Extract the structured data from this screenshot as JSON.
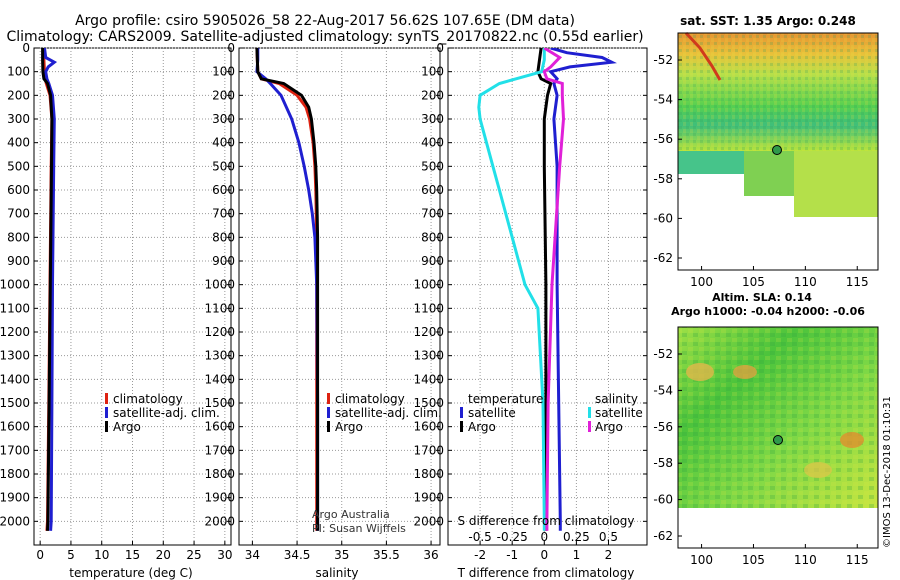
{
  "header": {
    "title_line1": "Argo profile: csiro 5905026_58 22-Aug-2017 56.62S 107.65E (DM data)",
    "title_line2": "Climatology: CARS2009. Satellite-adjusted climatology: synTS_20170822.nc (0.55d earlier)"
  },
  "colors": {
    "climatology": "#dd2211",
    "satellite": "#1f1fd0",
    "argo": "#000000",
    "s_satellite": "#22e0e8",
    "s_argo": "#e020d8"
  },
  "chart_data": [
    {
      "type": "line",
      "id": "temperature",
      "xlabel": "temperature (deg C)",
      "xlim": [
        -1,
        31
      ],
      "ylim": [
        2100,
        0
      ],
      "xticks": [
        0,
        5,
        10,
        15,
        20,
        25,
        30
      ],
      "yticks": [
        0,
        100,
        200,
        300,
        400,
        500,
        600,
        700,
        800,
        900,
        1000,
        1100,
        1200,
        1300,
        1400,
        1500,
        1600,
        1700,
        1800,
        1900,
        2000
      ],
      "legend": [
        "climatology",
        "satellite-adj. clim.",
        "Argo"
      ],
      "series": [
        {
          "name": "climatology",
          "depth": [
            0,
            50,
            100,
            130,
            150,
            200,
            300,
            500,
            1000,
            1500,
            2000,
            2040
          ],
          "values": [
            0.5,
            0.6,
            0.7,
            0.8,
            1.0,
            1.6,
            1.9,
            1.8,
            1.6,
            1.4,
            1.2,
            1.1
          ]
        },
        {
          "name": "satellite-adj. clim.",
          "depth": [
            0,
            40,
            60,
            80,
            100,
            130,
            150,
            200,
            300,
            500,
            1000,
            1500,
            2000,
            2040
          ],
          "values": [
            0.7,
            0.9,
            2.3,
            1.3,
            0.9,
            1.1,
            1.4,
            2.0,
            2.3,
            2.2,
            2.0,
            1.9,
            1.8,
            1.7
          ]
        },
        {
          "name": "Argo",
          "depth": [
            0,
            50,
            100,
            130,
            150,
            200,
            300,
            500,
            1000,
            1500,
            2000,
            2040
          ],
          "values": [
            0.4,
            0.4,
            0.45,
            0.6,
            1.2,
            1.7,
            1.9,
            1.85,
            1.65,
            1.45,
            1.25,
            1.2
          ]
        }
      ]
    },
    {
      "type": "line",
      "id": "salinity",
      "xlabel": "salinity",
      "xlim": [
        33.85,
        36.1
      ],
      "ylim": [
        2100,
        0
      ],
      "xticks": [
        34,
        34.5,
        35,
        35.5,
        36
      ],
      "xticklabels": [
        "34",
        "34.5",
        "35",
        "35.5",
        "36"
      ],
      "legend": [
        "climatology",
        "satellite-adj. clim.",
        "Argo"
      ],
      "series": [
        {
          "name": "climatology",
          "depth": [
            0,
            100,
            130,
            150,
            200,
            250,
            300,
            400,
            500,
            600,
            800,
            1000,
            1500,
            2000,
            2040
          ],
          "values": [
            34.05,
            34.06,
            34.1,
            34.3,
            34.5,
            34.6,
            34.64,
            34.68,
            34.7,
            34.71,
            34.72,
            34.72,
            34.72,
            34.72,
            34.72
          ]
        },
        {
          "name": "satellite-adj. clim.",
          "depth": [
            0,
            50,
            100,
            130,
            150,
            200,
            300,
            400,
            500,
            600,
            700,
            800,
            900,
            1000,
            1500,
            2000,
            2040
          ],
          "values": [
            34.06,
            34.06,
            34.05,
            34.15,
            34.2,
            34.32,
            34.44,
            34.52,
            34.58,
            34.63,
            34.67,
            34.7,
            34.71,
            34.72,
            34.73,
            34.73,
            34.73
          ]
        },
        {
          "name": "Argo",
          "depth": [
            0,
            100,
            130,
            150,
            200,
            250,
            300,
            400,
            500,
            600,
            800,
            1000,
            1500,
            2000,
            2040
          ],
          "values": [
            34.05,
            34.06,
            34.1,
            34.35,
            34.55,
            34.63,
            34.66,
            34.69,
            34.71,
            34.72,
            34.73,
            34.73,
            34.73,
            34.73,
            34.73
          ]
        }
      ],
      "annotation": [
        "Argo Australia",
        "PI: Susan Wijffels"
      ]
    },
    {
      "type": "line",
      "id": "difference",
      "xlabel": "T difference from climatology",
      "xlabel_top": "S difference from climatology",
      "xlim": [
        -3,
        3.2
      ],
      "ylim": [
        2100,
        0
      ],
      "xticks": [
        -2,
        -1,
        0,
        1,
        2
      ],
      "top_ticks": [
        -0.5,
        -0.25,
        0,
        0.25,
        0.5
      ],
      "top_ticklabels": [
        "-0.5",
        "-0.25",
        "0",
        "0.25",
        "0.5"
      ],
      "legend_temperature": {
        "title": "temperature",
        "items": [
          "satellite",
          "Argo"
        ]
      },
      "legend_salinity": {
        "title": "salinity",
        "items": [
          "satellite",
          "Argo"
        ]
      },
      "series": [
        {
          "name": "temperature satellite",
          "depth": [
            0,
            20,
            40,
            60,
            80,
            100,
            130,
            150,
            200,
            300,
            500,
            1000,
            1500,
            2000,
            2040
          ],
          "values": [
            0.2,
            0.7,
            1.8,
            2.1,
            0.8,
            0.2,
            0.4,
            0.3,
            0.4,
            0.3,
            0.4,
            0.4,
            0.45,
            0.5,
            0.5
          ]
        },
        {
          "name": "temperature Argo",
          "depth": [
            0,
            50,
            100,
            130,
            150,
            200,
            300,
            500,
            1000,
            1500,
            2000,
            2040
          ],
          "values": [
            -0.1,
            -0.15,
            -0.2,
            -0.1,
            0.2,
            0.1,
            0.0,
            0.0,
            0.05,
            0.05,
            0.05,
            0.05
          ]
        },
        {
          "name": "salinity satellite",
          "depth": [
            0,
            50,
            100,
            150,
            200,
            250,
            300,
            400,
            500,
            600,
            800,
            1000,
            1100,
            1500,
            2000,
            2040
          ],
          "values": [
            0.0,
            0.0,
            -0.02,
            -0.35,
            -0.5,
            -0.51,
            -0.5,
            -0.45,
            -0.4,
            -0.35,
            -0.25,
            -0.15,
            -0.05,
            -0.01,
            0.0,
            0.0
          ]
        },
        {
          "name": "salinity Argo",
          "depth": [
            0,
            40,
            80,
            100,
            130,
            150,
            200,
            300,
            500,
            1000,
            1500,
            2000,
            2040
          ],
          "values": [
            0.0,
            0.12,
            0.05,
            0.0,
            0.02,
            0.14,
            0.14,
            0.15,
            0.12,
            0.06,
            0.03,
            0.02,
            0.02
          ]
        }
      ]
    },
    {
      "type": "heatmap",
      "id": "sst_map",
      "title": "sat. SST: 1.35 Argo: 0.248",
      "xticks": [
        100,
        105,
        110,
        115
      ],
      "yticklabels": [
        "-52",
        "-54",
        "-56",
        "-58",
        "-60",
        "-62"
      ],
      "argo_position": {
        "lon": 107.65,
        "lat": -56.62
      }
    },
    {
      "type": "heatmap",
      "id": "sla_map",
      "title_line1": "Altim. SLA: 0.14",
      "title_line2": "Argo h1000: -0.04 h2000: -0.06",
      "xticks": [
        100,
        105,
        110,
        115
      ],
      "yticklabels": [
        "-52",
        "-54",
        "-56",
        "-58",
        "-60",
        "-62"
      ],
      "argo_position": {
        "lon": 107.65,
        "lat": -56.62
      }
    }
  ],
  "credit": "©IMOS 13-Dec-2018 01:10:31"
}
